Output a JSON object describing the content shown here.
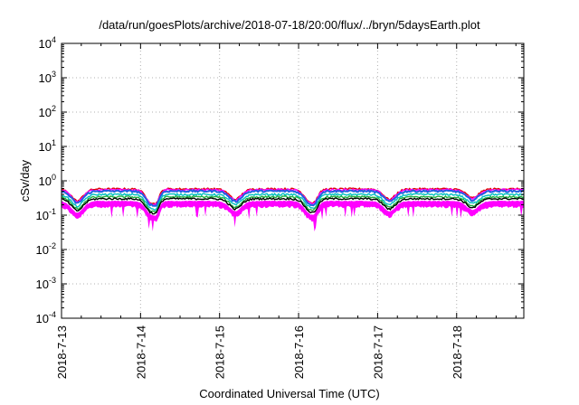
{
  "chart_data": {
    "type": "line",
    "title": "/data/run/goesPlots/archive/2018-07-18/20:00/flux/../bryn/5daysEarth.plot",
    "xlabel": "Coordinated Universal Time (UTC)",
    "ylabel": "cSv/day",
    "x_range_days": [
      0,
      5.85
    ],
    "ylim": [
      0.0001,
      10000
    ],
    "y_scale": "log",
    "grid": true,
    "x_tick_labels": [
      "2018-7-13",
      "2018-7-14",
      "2018-7-15",
      "2018-7-16",
      "2018-7-17",
      "2018-7-18"
    ],
    "x_tick_values_days": [
      0,
      1,
      2,
      3,
      4,
      5
    ],
    "y_tick_labels": [
      {
        "base": "10",
        "exp": "4"
      },
      {
        "base": "10",
        "exp": "3"
      },
      {
        "base": "10",
        "exp": "2"
      },
      {
        "base": "10",
        "exp": "1"
      },
      {
        "base": "10",
        "exp": "0"
      },
      {
        "base": "10",
        "exp": "-1"
      },
      {
        "base": "10",
        "exp": "-2"
      },
      {
        "base": "10",
        "exp": "-3"
      },
      {
        "base": "10",
        "exp": "-4"
      }
    ],
    "y_tick_values": [
      10000,
      1000,
      100,
      10,
      1,
      0.1,
      0.01,
      0.001,
      0.0001
    ],
    "series": [
      {
        "color": "#e00000",
        "level": 0.58
      },
      {
        "color": "#ff00ff",
        "level": 0.55
      },
      {
        "color": "#2060e0",
        "level": 0.5
      },
      {
        "color": "#00c0c0",
        "level": 0.4
      },
      {
        "color": "#20b040",
        "level": 0.34
      },
      {
        "color": "#000000",
        "level": 0.3
      },
      {
        "color": "#ff00ff",
        "level": 0.24
      }
    ],
    "dips": [
      {
        "day": 0.2,
        "depth": 0.55,
        "width": 0.12
      },
      {
        "day": 1.12,
        "depth": 0.55,
        "width": 0.1
      },
      {
        "day": 1.2,
        "depth": 0.45,
        "width": 0.06
      },
      {
        "day": 2.2,
        "depth": 0.5,
        "width": 0.12
      },
      {
        "day": 3.12,
        "depth": 0.45,
        "width": 0.1
      },
      {
        "day": 3.2,
        "depth": 0.45,
        "width": 0.08
      },
      {
        "day": 4.15,
        "depth": 0.5,
        "width": 0.12
      },
      {
        "day": 5.2,
        "depth": 0.45,
        "width": 0.12
      }
    ]
  }
}
